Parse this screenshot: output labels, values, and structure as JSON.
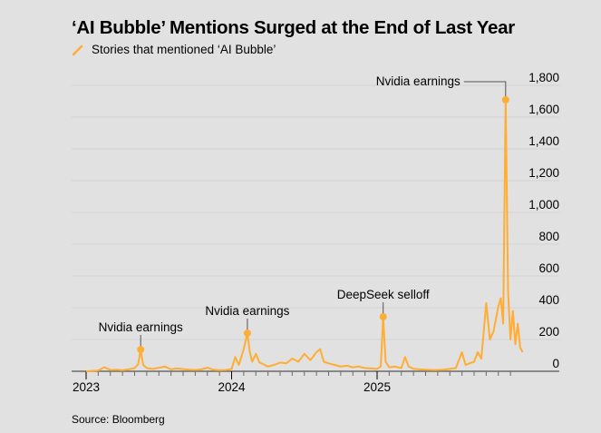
{
  "title": "‘AI Bubble’ Mentions Surged at the End of Last Year",
  "legend": {
    "label": "Stories that mentioned ‘AI Bubble’",
    "icon": "line-swatch-icon"
  },
  "source": "Source: Bloomberg",
  "colors": {
    "series": "#ffad33",
    "background": "#e1e1e1",
    "grid": "#d2d2d2",
    "axis": "#6b6b6b",
    "annotation_line": "#555555"
  },
  "chart_data": {
    "type": "line",
    "title": "‘AI Bubble’ Mentions Surged at the End of Last Year",
    "subtitle": "Stories that mentioned ‘AI Bubble’",
    "xlabel": "",
    "ylabel": "",
    "x_range": [
      "2023-01",
      "2026-01"
    ],
    "ylim": [
      0,
      1800
    ],
    "yticks": [
      0,
      200,
      400,
      600,
      800,
      1000,
      1200,
      1400,
      1600,
      1800
    ],
    "ytick_labels": [
      "0",
      "200",
      "400",
      "600",
      "800",
      "1,000",
      "1,200",
      "1,400",
      "1,600",
      "1,800"
    ],
    "xticks": [
      2023,
      2024,
      2025
    ],
    "xtick_labels": [
      "2023",
      "2024",
      "2025"
    ],
    "grid": true,
    "y_axis_position": "right",
    "legend_position": "top-left",
    "series": [
      {
        "name": "Stories that mentioned ‘AI Bubble’",
        "x_months": [
          0,
          0.5,
          1,
          1.5,
          2,
          2.5,
          3,
          3.5,
          4,
          4.3,
          4.5,
          4.7,
          5,
          5.5,
          6,
          6.5,
          7,
          7.5,
          8,
          8.5,
          9,
          9.5,
          10,
          10.5,
          11,
          11.5,
          12,
          12.3,
          12.6,
          13,
          13.3,
          13.5,
          13.7,
          14,
          14.3,
          14.6,
          15,
          15.5,
          16,
          16.5,
          17,
          17.5,
          18,
          18.5,
          19,
          19.3,
          19.6,
          20,
          20.5,
          21,
          21.5,
          22,
          22.5,
          23,
          23.5,
          24,
          24.3,
          24.5,
          24.7,
          25,
          25.5,
          26,
          26.3,
          26.6,
          27,
          27.5,
          28,
          28.5,
          29,
          29.5,
          30,
          30.5,
          31,
          31.3,
          31.6,
          32,
          32.3,
          32.6,
          33,
          33.3,
          33.6,
          34,
          34.2,
          34.4,
          34.6,
          34.8,
          35,
          35.2,
          35.4,
          35.6,
          35.8,
          36
        ],
        "values": [
          0,
          2,
          5,
          25,
          8,
          10,
          6,
          12,
          20,
          45,
          137,
          40,
          20,
          15,
          22,
          30,
          12,
          18,
          14,
          10,
          8,
          12,
          22,
          10,
          6,
          8,
          15,
          90,
          40,
          140,
          240,
          120,
          60,
          110,
          55,
          45,
          30,
          40,
          55,
          50,
          80,
          60,
          110,
          70,
          120,
          140,
          60,
          50,
          40,
          30,
          35,
          25,
          30,
          20,
          18,
          15,
          30,
          343,
          60,
          25,
          30,
          20,
          90,
          30,
          15,
          12,
          10,
          8,
          8,
          10,
          15,
          20,
          120,
          40,
          50,
          60,
          120,
          80,
          430,
          200,
          250,
          410,
          460,
          300,
          1709,
          500,
          200,
          380,
          170,
          300,
          150,
          120
        ]
      }
    ],
    "annotations": [
      {
        "label": "Nvidia earnings",
        "x_month": 4.5,
        "value": 137
      },
      {
        "label": "Nvidia earnings",
        "x_month": 13.3,
        "value": 240
      },
      {
        "label": "DeepSeek selloff",
        "x_month": 24.5,
        "value": 343
      },
      {
        "label": "Nvidia earnings",
        "x_month": 34.6,
        "value": 1709
      }
    ]
  }
}
